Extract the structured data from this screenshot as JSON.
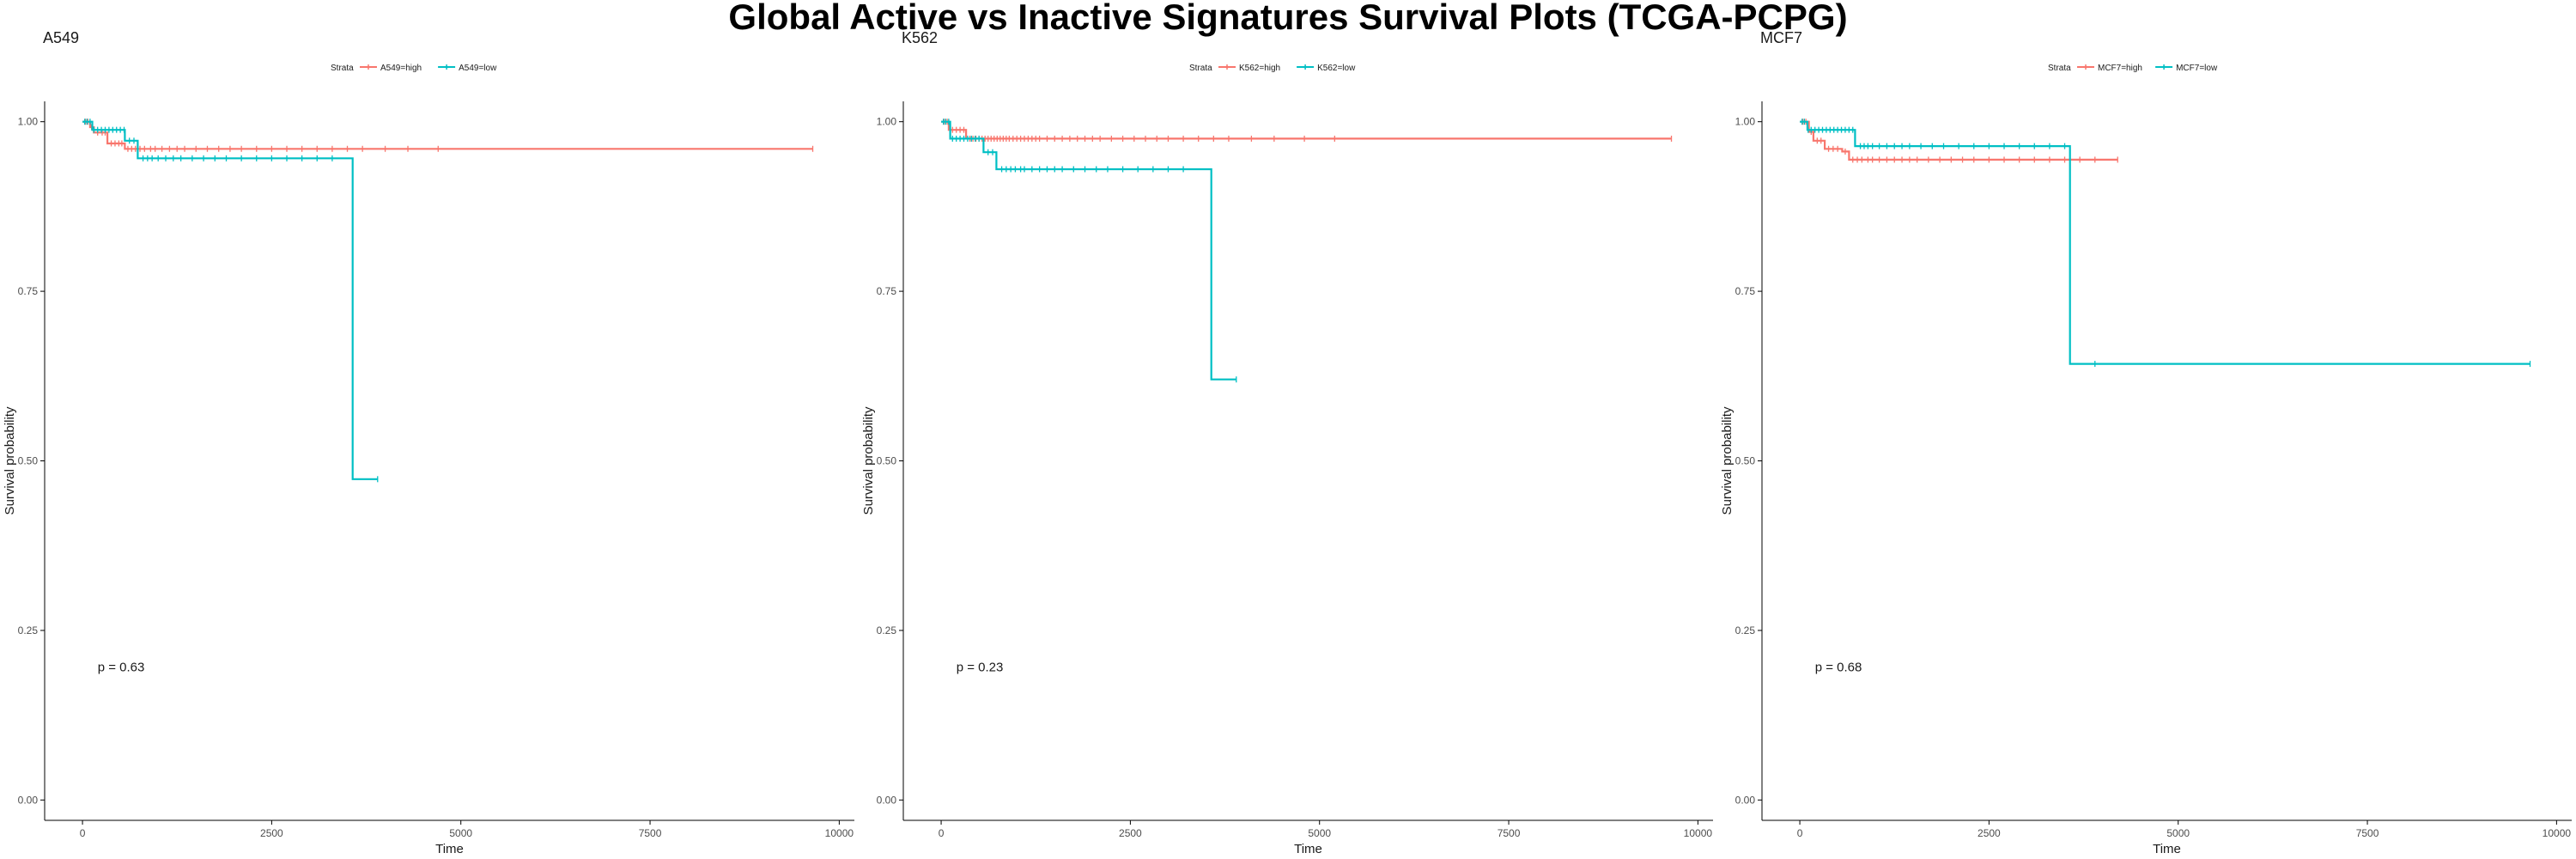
{
  "title": "Global Active vs Inactive Signatures Survival Plots (TCGA-PCPG)",
  "colors": {
    "high": "#F8766D",
    "low": "#00BFC4",
    "axis": "#000000",
    "text": "#1a1a1a",
    "tick_text": "#4d4d4d"
  },
  "chart_data": [
    {
      "type": "line",
      "title": "A549",
      "xlabel": "Time",
      "ylabel": "Survival probability",
      "xlim": [
        -500,
        10200
      ],
      "ylim": [
        -0.03,
        1.03
      ],
      "x_ticks": [
        "0",
        "2500",
        "5000",
        "7500",
        "10000"
      ],
      "y_ticks": [
        "0.00",
        "0.25",
        "0.50",
        "0.75",
        "1.00"
      ],
      "legend_title": "Strata",
      "legend_position": "top",
      "p_value_label": "p = 0.63",
      "series": [
        {
          "name": "A549=high",
          "key": "high",
          "steps": [
            [
              0,
              1.0
            ],
            [
              100,
              0.992
            ],
            [
              150,
              0.984
            ],
            [
              330,
              0.968
            ],
            [
              560,
              0.96
            ],
            [
              9650,
              0.96
            ]
          ],
          "censor": [
            40,
            70,
            120,
            200,
            260,
            300,
            380,
            430,
            480,
            520,
            600,
            650,
            700,
            760,
            820,
            900,
            960,
            1050,
            1150,
            1250,
            1350,
            1500,
            1650,
            1800,
            1950,
            2100,
            2300,
            2500,
            2700,
            2900,
            3100,
            3300,
            3500,
            3700,
            4000,
            4300,
            4700,
            9650
          ]
        },
        {
          "name": "A549=low",
          "key": "low",
          "steps": [
            [
              0,
              1.0
            ],
            [
              130,
              0.988
            ],
            [
              560,
              0.972
            ],
            [
              730,
              0.946
            ],
            [
              3570,
              0.946
            ],
            [
              3570,
              0.473
            ],
            [
              3900,
              0.473
            ]
          ],
          "censor": [
            30,
            60,
            100,
            150,
            200,
            250,
            300,
            350,
            400,
            450,
            500,
            550,
            620,
            680,
            800,
            860,
            920,
            1000,
            1100,
            1200,
            1300,
            1450,
            1600,
            1750,
            1900,
            2100,
            2300,
            2500,
            2700,
            2900,
            3100,
            3300,
            3900
          ]
        }
      ]
    },
    {
      "type": "line",
      "title": "K562",
      "xlabel": "Time",
      "ylabel": "Survival probability",
      "xlim": [
        -500,
        10200
      ],
      "ylim": [
        -0.03,
        1.03
      ],
      "x_ticks": [
        "0",
        "2500",
        "5000",
        "7500",
        "10000"
      ],
      "y_ticks": [
        "0.00",
        "0.25",
        "0.50",
        "0.75",
        "1.00"
      ],
      "legend_title": "Strata",
      "legend_position": "top",
      "p_value_label": "p = 0.23",
      "series": [
        {
          "name": "K562=high",
          "key": "high",
          "steps": [
            [
              0,
              1.0
            ],
            [
              100,
              0.988
            ],
            [
              330,
              0.975
            ],
            [
              9650,
              0.975
            ]
          ],
          "censor": [
            40,
            80,
            150,
            200,
            250,
            300,
            380,
            420,
            460,
            500,
            540,
            580,
            620,
            660,
            700,
            740,
            780,
            820,
            860,
            900,
            950,
            1000,
            1050,
            1100,
            1150,
            1200,
            1250,
            1300,
            1400,
            1500,
            1600,
            1700,
            1800,
            1900,
            2000,
            2100,
            2250,
            2400,
            2550,
            2700,
            2850,
            3000,
            3200,
            3400,
            3600,
            3800,
            4100,
            4400,
            4800,
            5200,
            9650
          ]
        },
        {
          "name": "K562=low",
          "key": "low",
          "steps": [
            [
              0,
              1.0
            ],
            [
              120,
              0.975
            ],
            [
              560,
              0.955
            ],
            [
              730,
              0.93
            ],
            [
              3570,
              0.93
            ],
            [
              3570,
              0.62
            ],
            [
              3900,
              0.62
            ]
          ],
          "censor": [
            30,
            60,
            100,
            150,
            200,
            250,
            300,
            350,
            400,
            450,
            500,
            620,
            680,
            800,
            860,
            920,
            980,
            1050,
            1100,
            1200,
            1300,
            1400,
            1500,
            1600,
            1750,
            1900,
            2050,
            2200,
            2400,
            2600,
            2800,
            3000,
            3200,
            3900
          ]
        }
      ]
    },
    {
      "type": "line",
      "title": "MCF7",
      "xlabel": "Time",
      "ylabel": "Survival probability",
      "xlim": [
        -500,
        10200
      ],
      "ylim": [
        -0.03,
        1.03
      ],
      "x_ticks": [
        "0",
        "2500",
        "5000",
        "7500",
        "10000"
      ],
      "y_ticks": [
        "0.00",
        "0.25",
        "0.50",
        "0.75",
        "1.00"
      ],
      "legend_title": "Strata",
      "legend_position": "top",
      "p_value_label": "p = 0.68",
      "series": [
        {
          "name": "MCF7=high",
          "key": "high",
          "steps": [
            [
              0,
              1.0
            ],
            [
              120,
              0.985
            ],
            [
              180,
              0.972
            ],
            [
              330,
              0.96
            ],
            [
              560,
              0.956
            ],
            [
              650,
              0.944
            ],
            [
              4200,
              0.944
            ]
          ],
          "censor": [
            40,
            80,
            150,
            230,
            280,
            380,
            440,
            500,
            600,
            700,
            760,
            820,
            900,
            960,
            1050,
            1150,
            1250,
            1350,
            1450,
            1550,
            1700,
            1850,
            2000,
            2150,
            2300,
            2500,
            2700,
            2900,
            3100,
            3300,
            3500,
            3700,
            3900,
            4200
          ]
        },
        {
          "name": "MCF7=low",
          "key": "low",
          "steps": [
            [
              0,
              1.0
            ],
            [
              100,
              0.988
            ],
            [
              730,
              0.964
            ],
            [
              3570,
              0.964
            ],
            [
              3570,
              0.643
            ],
            [
              9650,
              0.643
            ]
          ],
          "censor": [
            30,
            60,
            110,
            150,
            200,
            250,
            300,
            350,
            400,
            450,
            500,
            550,
            600,
            650,
            700,
            800,
            850,
            900,
            960,
            1050,
            1150,
            1250,
            1350,
            1450,
            1600,
            1750,
            1900,
            2100,
            2300,
            2500,
            2700,
            2900,
            3100,
            3300,
            3500,
            3900,
            9650
          ]
        }
      ]
    }
  ]
}
